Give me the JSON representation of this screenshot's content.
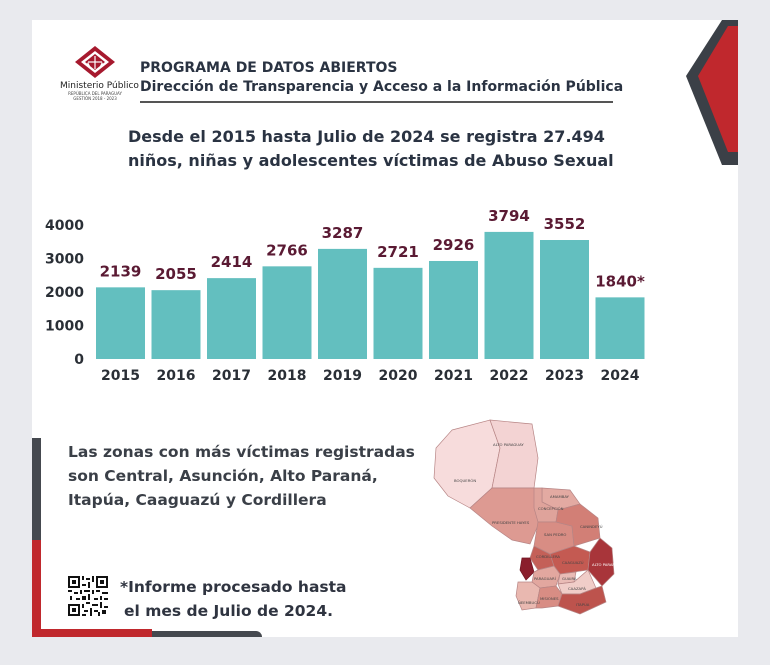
{
  "header": {
    "logo_name": "Ministerio Público",
    "logo_sub_1": "REPÚBLICA DEL PARAGUAY",
    "logo_sub_2": "GESTIÓN 2018 - 2023",
    "title": "PROGRAMA DE DATOS ABIERTOS",
    "subtitle": "Dirección de Transparencia y Acceso a la Información Pública"
  },
  "headline": {
    "line1": "Desde el 2015 hasta Julio de 2024 se registra 27.494",
    "line2": "niños, niñas y adolescentes víctimas de Abuso Sexual"
  },
  "chart_data": {
    "type": "bar",
    "categories": [
      "2015",
      "2016",
      "2017",
      "2018",
      "2019",
      "2020",
      "2021",
      "2022",
      "2023",
      "2024"
    ],
    "values": [
      2139,
      2055,
      2414,
      2766,
      3287,
      2721,
      2926,
      3794,
      3552,
      1840
    ],
    "value_labels": [
      "2139",
      "2055",
      "2414",
      "2766",
      "3287",
      "2721",
      "2926",
      "3794",
      "3552",
      "1840*"
    ],
    "yticks": [
      0,
      1000,
      2000,
      3000,
      4000
    ],
    "ylim": [
      0,
      4000
    ],
    "bar_color": "#63bfbf",
    "label_color": "#5a1a33",
    "grid": false,
    "title": "",
    "xlabel": "",
    "ylabel": ""
  },
  "zones": {
    "line1": "Las zonas con más víctimas registradas",
    "line2": "son Central, Asunción, Alto Paraná,",
    "line3": "Itapúa, Caaguazú y Cordillera"
  },
  "map": {
    "labels": [
      "ALTO PARAGUAY",
      "BOQUERÓN",
      "PRESIDENTE HAYES",
      "AMAMBAY",
      "CONCEPCIÓN",
      "SAN PEDRO",
      "CANINDEYÚ",
      "CORDILLERA",
      "CAAGUAZÚ",
      "ALTO PARANÁ",
      "GUAIRÁ",
      "CAAZAPÁ",
      "PARAGUARÍ",
      "MISIONES",
      "ITAPÚA",
      "ÑEEMBUCÚ"
    ]
  },
  "note": {
    "line1": "*Informe procesado hasta",
    "line2": "el mes de Julio de 2024."
  },
  "colors": {
    "accent_red": "#c0282d",
    "dark": "#2f3440",
    "teal": "#63bfbf"
  }
}
